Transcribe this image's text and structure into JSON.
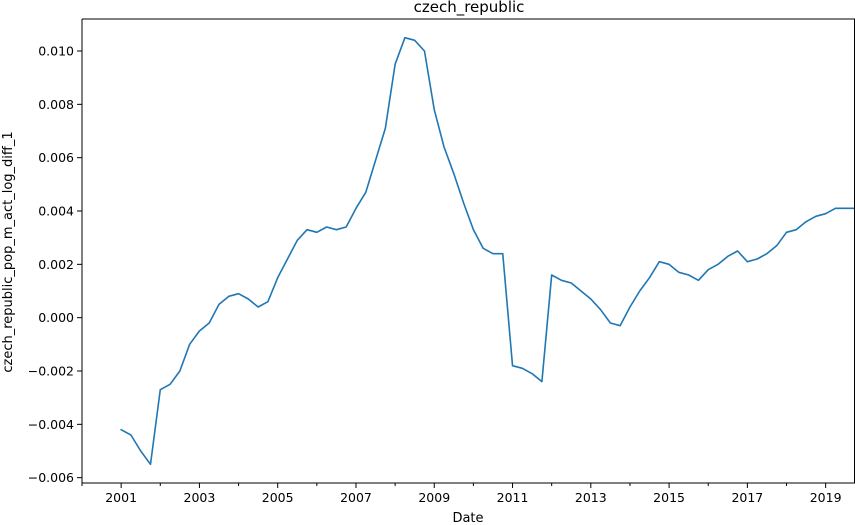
{
  "chart_data": {
    "type": "line",
    "title": "czech_republic",
    "xlabel": "Date",
    "ylabel": "czech_republic_pop_m_act_log_diff_1",
    "xlim": [
      2000.0,
      2019.75
    ],
    "ylim": [
      -0.0062,
      0.0112
    ],
    "grid": false,
    "legend": "none",
    "colors": {
      "line": "#1f77b4",
      "axis": "#000000"
    },
    "x_ticks": [
      {
        "value": 2001,
        "label": "2001"
      },
      {
        "value": 2003,
        "label": "2003"
      },
      {
        "value": 2005,
        "label": "2005"
      },
      {
        "value": 2007,
        "label": "2007"
      },
      {
        "value": 2009,
        "label": "2009"
      },
      {
        "value": 2011,
        "label": "2011"
      },
      {
        "value": 2013,
        "label": "2013"
      },
      {
        "value": 2015,
        "label": "2015"
      },
      {
        "value": 2017,
        "label": "2017"
      },
      {
        "value": 2019,
        "label": "2019"
      }
    ],
    "x_minor_ticks": [
      2000,
      2002,
      2004,
      2006,
      2008,
      2010,
      2012,
      2014,
      2016,
      2018
    ],
    "y_ticks": [
      {
        "value": -0.006,
        "label": "−0.006"
      },
      {
        "value": -0.004,
        "label": "−0.004"
      },
      {
        "value": -0.002,
        "label": "−0.002"
      },
      {
        "value": 0.0,
        "label": "0.000"
      },
      {
        "value": 0.002,
        "label": "0.002"
      },
      {
        "value": 0.004,
        "label": "0.004"
      },
      {
        "value": 0.006,
        "label": "0.006"
      },
      {
        "value": 0.008,
        "label": "0.008"
      },
      {
        "value": 0.01,
        "label": "0.010"
      }
    ],
    "series": [
      {
        "x": [
          2001.0,
          2001.25,
          2001.5,
          2001.75,
          2002.0,
          2002.25,
          2002.5,
          2002.75,
          2003.0,
          2003.25,
          2003.5,
          2003.75,
          2004.0,
          2004.25,
          2004.5,
          2004.75,
          2005.0,
          2005.25,
          2005.5,
          2005.75,
          2006.0,
          2006.25,
          2006.5,
          2006.75,
          2007.0,
          2007.25,
          2007.5,
          2007.75,
          2008.0,
          2008.25,
          2008.5,
          2008.75,
          2009.0,
          2009.25,
          2009.5,
          2009.75,
          2010.0,
          2010.25,
          2010.5,
          2010.75,
          2011.0,
          2011.25,
          2011.5,
          2011.75,
          2012.0,
          2012.25,
          2012.5,
          2012.75,
          2013.0,
          2013.25,
          2013.5,
          2013.75,
          2014.0,
          2014.25,
          2014.5,
          2014.75,
          2015.0,
          2015.25,
          2015.5,
          2015.75,
          2016.0,
          2016.25,
          2016.5,
          2016.75,
          2017.0,
          2017.25,
          2017.5,
          2017.75,
          2018.0,
          2018.25,
          2018.5,
          2018.75,
          2019.0,
          2019.25,
          2019.5,
          2019.75
        ],
        "y": [
          -0.0042,
          -0.0044,
          -0.005,
          -0.0055,
          -0.0027,
          -0.0025,
          -0.002,
          -0.001,
          -0.0005,
          -0.0002,
          0.0005,
          0.0008,
          0.0009,
          0.0007,
          0.0004,
          0.0006,
          0.0015,
          0.0022,
          0.0029,
          0.0033,
          0.0032,
          0.0034,
          0.0033,
          0.0034,
          0.0041,
          0.0047,
          0.0059,
          0.0071,
          0.0095,
          0.0105,
          0.0104,
          0.01,
          0.0078,
          0.0064,
          0.0054,
          0.0043,
          0.0033,
          0.0026,
          0.0024,
          0.0024,
          -0.0018,
          -0.0019,
          -0.0021,
          -0.0024,
          0.0016,
          0.0014,
          0.0013,
          0.001,
          0.0007,
          0.0003,
          -0.0002,
          -0.0003,
          0.0004,
          0.001,
          0.0015,
          0.0021,
          0.002,
          0.0017,
          0.0016,
          0.0014,
          0.0018,
          0.002,
          0.0023,
          0.0025,
          0.0021,
          0.0022,
          0.0024,
          0.0027,
          0.0032,
          0.0033,
          0.0036,
          0.0038,
          0.0039,
          0.0041,
          0.0041,
          0.0041
        ]
      }
    ]
  }
}
